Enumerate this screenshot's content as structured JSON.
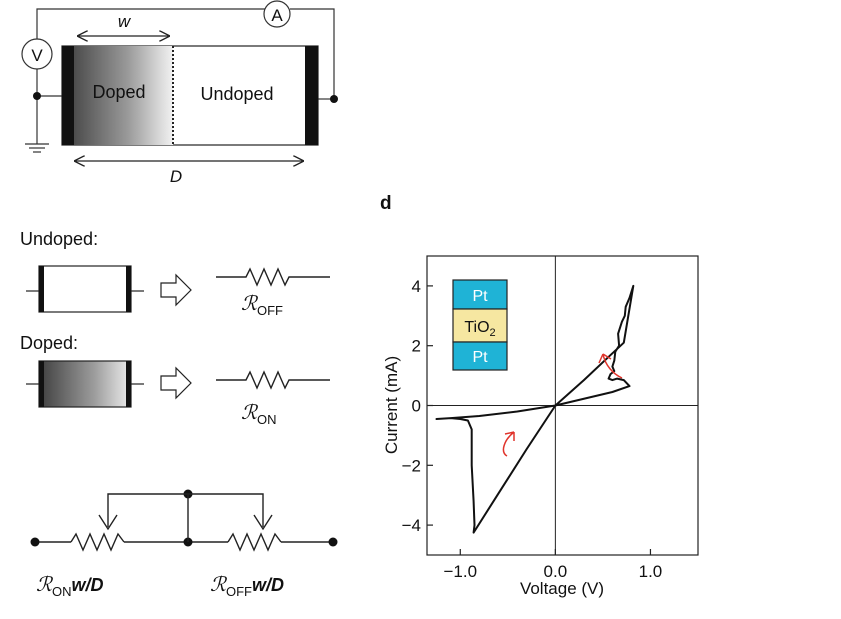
{
  "device": {
    "width_label": "w",
    "length_label": "D",
    "voltmeter_label": "V",
    "ammeter_label": "A",
    "doped_label": "Doped",
    "undoped_label": "Undoped"
  },
  "states": {
    "undoped_heading": "Undoped:",
    "doped_heading": "Doped:",
    "r_off_symbol": "ℛ",
    "r_off_sub": "OFF",
    "r_on_symbol": "ℛ",
    "r_on_sub": "ON"
  },
  "series_circuit": {
    "r_on_symbol": "ℛ",
    "r_on_sub": "ON",
    "r_on_suffix": "w/D",
    "r_off_symbol": "ℛ",
    "r_off_sub": "OFF",
    "r_off_suffix": "w/D"
  },
  "panel_label": "d",
  "inset": {
    "top": "Pt",
    "middle_main": "TiO",
    "middle_sub": "2",
    "bottom": "Pt",
    "pt_color": "#1fb3d6",
    "tio2_color": "#f6e7a1"
  },
  "chart_data": {
    "type": "line",
    "xlabel": "Voltage (V)",
    "ylabel": "Current (mA)",
    "xlim": [
      -1.35,
      1.5
    ],
    "ylim": [
      -5,
      5
    ],
    "x_ticks": [
      {
        "value": -1.0,
        "label": "−1.0"
      },
      {
        "value": 0.0,
        "label": "0.0"
      },
      {
        "value": 1.0,
        "label": "1.0"
      }
    ],
    "y_ticks": [
      {
        "value": 4,
        "label": "4"
      },
      {
        "value": 2,
        "label": "2"
      },
      {
        "value": 0,
        "label": "0"
      },
      {
        "value": -2,
        "label": "−2"
      },
      {
        "value": -4,
        "label": "−4"
      }
    ],
    "series": [
      {
        "color": "#111111",
        "x": [
          0.0,
          0.3,
          0.55,
          0.72,
          0.82,
          0.78,
          0.74,
          0.73,
          0.7,
          0.66,
          0.67,
          0.63,
          0.62,
          0.6,
          0.62,
          0.58,
          0.56,
          0.6,
          0.65,
          0.72,
          0.78,
          0.6,
          0.4,
          0.2,
          0.0,
          -0.4,
          -0.8,
          -1.1,
          -1.25,
          -1.1,
          -1.0,
          -0.92,
          -0.88,
          -0.88,
          -0.86,
          -0.85,
          -0.86,
          -0.6,
          -0.3,
          0.0
        ],
        "y": [
          0.0,
          0.85,
          1.6,
          2.1,
          4.0,
          3.6,
          3.3,
          3.0,
          2.8,
          2.4,
          2.0,
          1.8,
          1.5,
          1.3,
          1.15,
          1.05,
          0.9,
          0.85,
          0.9,
          0.85,
          0.65,
          0.45,
          0.3,
          0.15,
          0.0,
          -0.2,
          -0.35,
          -0.42,
          -0.45,
          -0.42,
          -0.45,
          -0.5,
          -0.8,
          -2.0,
          -3.2,
          -4.0,
          -4.25,
          -2.95,
          -1.45,
          0.0
        ]
      }
    ]
  }
}
